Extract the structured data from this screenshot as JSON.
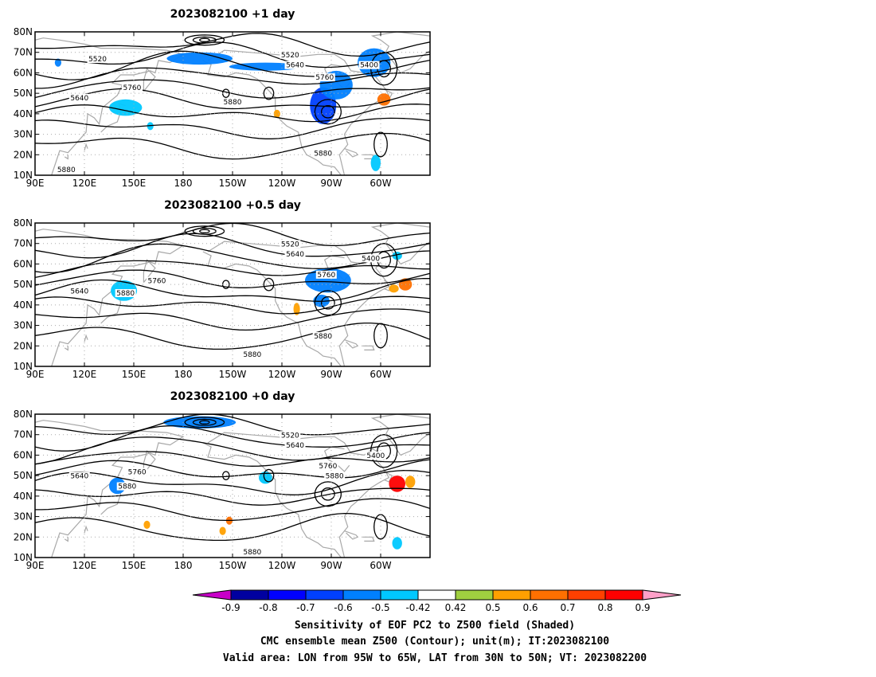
{
  "chart_data": {
    "type": "map-panels",
    "x_ticks": [
      "90E",
      "120E",
      "150E",
      "180",
      "150W",
      "120W",
      "90W",
      "60W"
    ],
    "x_tick_lon": [
      90,
      120,
      150,
      180,
      210,
      240,
      270,
      300
    ],
    "y_ticks": [
      "80N",
      "70N",
      "60N",
      "50N",
      "40N",
      "30N",
      "20N",
      "10N"
    ],
    "y_tick_lat": [
      80,
      70,
      60,
      50,
      40,
      30,
      20,
      10
    ],
    "xlim_lon": [
      90,
      330
    ],
    "ylim_lat": [
      10,
      80
    ],
    "grid": "dotted",
    "panels": [
      {
        "title": "2023082100 +1 day",
        "contour_labels": [
          {
            "text": "5520",
            "lon": 128,
            "lat": 66
          },
          {
            "text": "5520",
            "lon": 245,
            "lat": 68
          },
          {
            "text": "5640",
            "lon": 248,
            "lat": 63
          },
          {
            "text": "5400",
            "lon": 293,
            "lat": 63
          },
          {
            "text": "5760",
            "lon": 266,
            "lat": 57
          },
          {
            "text": "5640",
            "lon": 117,
            "lat": 47
          },
          {
            "text": "5760",
            "lon": 149,
            "lat": 52
          },
          {
            "text": "5880",
            "lon": 210,
            "lat": 45
          },
          {
            "text": "5880",
            "lon": 265,
            "lat": 20
          },
          {
            "text": "5880",
            "lon": 109,
            "lat": 12
          }
        ],
        "shading": [
          {
            "lon": 104,
            "lat": 65,
            "rx": 2,
            "ry": 2,
            "value": -0.6
          },
          {
            "lon": 145,
            "lat": 43,
            "rx": 10,
            "ry": 4,
            "value": -0.5
          },
          {
            "lon": 160,
            "lat": 34,
            "rx": 2,
            "ry": 2,
            "value": -0.5
          },
          {
            "lon": 190,
            "lat": 67,
            "rx": 20,
            "ry": 3,
            "value": -0.6
          },
          {
            "lon": 230,
            "lat": 63,
            "rx": 22,
            "ry": 2,
            "value": -0.6
          },
          {
            "lon": 265,
            "lat": 44,
            "rx": 8,
            "ry": 9,
            "value": -0.7
          },
          {
            "lon": 273,
            "lat": 54,
            "rx": 10,
            "ry": 7,
            "value": -0.6
          },
          {
            "lon": 296,
            "lat": 65,
            "rx": 10,
            "ry": 7,
            "value": -0.6
          },
          {
            "lon": 302,
            "lat": 47,
            "rx": 4,
            "ry": 3,
            "value": 0.6
          },
          {
            "lon": 297,
            "lat": 16,
            "rx": 3,
            "ry": 4,
            "value": -0.5
          },
          {
            "lon": 237,
            "lat": 40,
            "rx": 2,
            "ry": 2,
            "value": 0.5
          }
        ]
      },
      {
        "title": "2023082100 +0.5 day",
        "contour_labels": [
          {
            "text": "5520",
            "lon": 245,
            "lat": 69
          },
          {
            "text": "5640",
            "lon": 248,
            "lat": 64
          },
          {
            "text": "5400",
            "lon": 294,
            "lat": 62
          },
          {
            "text": "5760",
            "lon": 267,
            "lat": 54
          },
          {
            "text": "5760",
            "lon": 164,
            "lat": 51
          },
          {
            "text": "5640",
            "lon": 117,
            "lat": 46
          },
          {
            "text": "5880",
            "lon": 145,
            "lat": 45
          },
          {
            "text": "5880",
            "lon": 265,
            "lat": 24
          },
          {
            "text": "5880",
            "lon": 222,
            "lat": 15
          }
        ],
        "shading": [
          {
            "lon": 144,
            "lat": 47,
            "rx": 8,
            "ry": 5,
            "value": -0.5
          },
          {
            "lon": 268,
            "lat": 52,
            "rx": 14,
            "ry": 6,
            "value": -0.6
          },
          {
            "lon": 264,
            "lat": 42,
            "rx": 5,
            "ry": 3,
            "value": -0.6
          },
          {
            "lon": 315,
            "lat": 50,
            "rx": 4,
            "ry": 3,
            "value": 0.6
          },
          {
            "lon": 308,
            "lat": 48,
            "rx": 3,
            "ry": 2,
            "value": 0.5
          },
          {
            "lon": 249,
            "lat": 38,
            "rx": 2,
            "ry": 3,
            "value": 0.5
          },
          {
            "lon": 310,
            "lat": 64,
            "rx": 3,
            "ry": 2,
            "value": -0.5
          }
        ]
      },
      {
        "title": "2023082100 +0 day",
        "contour_labels": [
          {
            "text": "5520",
            "lon": 245,
            "lat": 69
          },
          {
            "text": "5640",
            "lon": 248,
            "lat": 64
          },
          {
            "text": "5400",
            "lon": 297,
            "lat": 59
          },
          {
            "text": "5760",
            "lon": 268,
            "lat": 54
          },
          {
            "text": "5880",
            "lon": 272,
            "lat": 49
          },
          {
            "text": "5760",
            "lon": 152,
            "lat": 51
          },
          {
            "text": "5640",
            "lon": 117,
            "lat": 49
          },
          {
            "text": "5880",
            "lon": 146,
            "lat": 44
          },
          {
            "text": "5880",
            "lon": 222,
            "lat": 12
          }
        ],
        "shading": [
          {
            "lon": 190,
            "lat": 76,
            "rx": 22,
            "ry": 3,
            "value": -0.6
          },
          {
            "lon": 140,
            "lat": 45,
            "rx": 5,
            "ry": 4,
            "value": -0.6
          },
          {
            "lon": 230,
            "lat": 49,
            "rx": 4,
            "ry": 3,
            "value": -0.5
          },
          {
            "lon": 310,
            "lat": 46,
            "rx": 5,
            "ry": 4,
            "value": 0.8
          },
          {
            "lon": 318,
            "lat": 47,
            "rx": 3,
            "ry": 3,
            "value": 0.5
          },
          {
            "lon": 158,
            "lat": 26,
            "rx": 2,
            "ry": 2,
            "value": 0.5
          },
          {
            "lon": 208,
            "lat": 28,
            "rx": 2,
            "ry": 2,
            "value": 0.6
          },
          {
            "lon": 204,
            "lat": 23,
            "rx": 2,
            "ry": 2,
            "value": 0.5
          },
          {
            "lon": 310,
            "lat": 17,
            "rx": 3,
            "ry": 3,
            "value": -0.5
          }
        ]
      }
    ],
    "colorbar": {
      "labels": [
        "-0.9",
        "-0.8",
        "-0.7",
        "-0.6",
        "-0.5",
        "-0.42",
        "0.42",
        "0.5",
        "0.6",
        "0.7",
        "0.8",
        "0.9"
      ],
      "colors": [
        "#c800c8",
        "#0000a0",
        "#0000ff",
        "#0040ff",
        "#0080ff",
        "#00c8ff",
        "#ffffff",
        "#a0d040",
        "#ffa000",
        "#ff7000",
        "#ff4000",
        "#ff0000",
        "#ffa0c8"
      ]
    }
  },
  "caption": {
    "line1": "Sensitivity of EOF PC2 to Z500 field (Shaded)",
    "line2": "CMC ensemble mean Z500 (Contour); unit(m); IT:2023082100",
    "line3": "Valid area: LON from 95W to 65W, LAT from 30N to 50N; VT: 2023082200"
  }
}
